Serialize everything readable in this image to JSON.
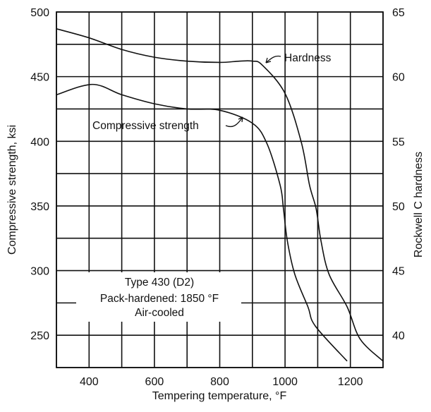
{
  "chart_data": {
    "type": "line",
    "xlabel": "Tempering temperature, °F",
    "ylabel": "Compressive strength, ksi",
    "y2label": "Rockwell C hardness",
    "xlim": [
      300,
      1300
    ],
    "ylim": [
      225,
      500
    ],
    "y2lim": [
      37.5,
      65
    ],
    "grid": true,
    "xticks": [
      400,
      600,
      800,
      1000,
      1200
    ],
    "yticks": [
      250,
      300,
      350,
      400,
      450,
      500
    ],
    "y2ticks": [
      40,
      45,
      50,
      55,
      60,
      65
    ],
    "annotation": [
      "Type 430 (D2)",
      "Pack-hardened: 1850 °F",
      "Air-cooled"
    ],
    "series": [
      {
        "name": "Hardness",
        "axis": "right",
        "x": [
          300,
          400,
          500,
          600,
          700,
          800,
          860,
          900,
          930,
          1000,
          1050,
          1075,
          1095,
          1110,
          1135,
          1190,
          1230,
          1300
        ],
        "y": [
          63.7,
          63.0,
          62.1,
          61.5,
          61.2,
          61.1,
          61.2,
          61.2,
          60.9,
          58.7,
          54.9,
          51.6,
          49.8,
          47.3,
          44.7,
          42.2,
          39.7,
          38.0
        ]
      },
      {
        "name": "Compressive strength",
        "axis": "left",
        "x": [
          300,
          410,
          500,
          600,
          700,
          800,
          900,
          945,
          985,
          995,
          1007,
          1030,
          1070,
          1093,
          1190
        ],
        "y": [
          436,
          444,
          436,
          429,
          425,
          424,
          414,
          398,
          366,
          348,
          323,
          297,
          272,
          257,
          230
        ]
      }
    ]
  }
}
